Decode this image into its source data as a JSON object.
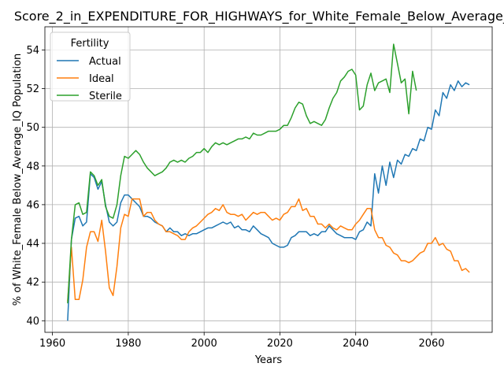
{
  "chart_data": {
    "type": "line",
    "title": "Score_2_in_EXPENDITURE_FOR_HIGHWAYS_for_White_Female_Below_Average_IQ",
    "xlabel": "Years",
    "ylabel": "% of White_Female Below_Average_IQ Population",
    "xlim": [
      1958,
      2076
    ],
    "ylim": [
      39.4,
      55.2
    ],
    "xticks": [
      1960,
      1980,
      2000,
      2020,
      2040,
      2060
    ],
    "yticks": [
      40,
      42,
      44,
      46,
      48,
      50,
      52,
      54
    ],
    "grid": true,
    "legend": {
      "title": "Fertility",
      "placement": "top-left"
    },
    "series": [
      {
        "name": "Actual",
        "color": "#1f77b4",
        "x": [
          1964,
          1965,
          1966,
          1967,
          1968,
          1969,
          1970,
          1971,
          1972,
          1973,
          1974,
          1975,
          1976,
          1977,
          1978,
          1979,
          1980,
          1981,
          1982,
          1983,
          1984,
          1985,
          1986,
          1987,
          1988,
          1989,
          1990,
          1991,
          1992,
          1993,
          1994,
          1995,
          1996,
          1997,
          1998,
          1999,
          2000,
          2001,
          2002,
          2003,
          2004,
          2005,
          2006,
          2007,
          2008,
          2009,
          2010,
          2011,
          2012,
          2013,
          2014,
          2015,
          2016,
          2017,
          2018,
          2019,
          2020,
          2021,
          2022,
          2023,
          2024,
          2025,
          2026,
          2027,
          2028,
          2029,
          2030,
          2031,
          2032,
          2033,
          2034,
          2035,
          2036,
          2037,
          2038,
          2039,
          2040,
          2041,
          2042,
          2043,
          2044,
          2045,
          2046,
          2047,
          2048,
          2049,
          2050,
          2051,
          2052,
          2053,
          2054,
          2055,
          2056,
          2057,
          2058,
          2059,
          2060,
          2061,
          2062,
          2063,
          2064,
          2065,
          2066,
          2067,
          2068,
          2069,
          2070
        ],
        "y": [
          40.0,
          44.2,
          45.3,
          45.4,
          44.9,
          45.1,
          47.6,
          47.4,
          46.8,
          47.2,
          46.0,
          45.1,
          44.9,
          45.1,
          46.1,
          46.5,
          46.5,
          46.3,
          46.1,
          45.9,
          45.4,
          45.4,
          45.3,
          45.1,
          45.0,
          44.9,
          44.6,
          44.8,
          44.6,
          44.6,
          44.4,
          44.5,
          44.4,
          44.5,
          44.5,
          44.6,
          44.7,
          44.8,
          44.8,
          44.9,
          45.0,
          45.1,
          45.0,
          45.1,
          44.8,
          44.9,
          44.7,
          44.7,
          44.6,
          44.9,
          44.7,
          44.5,
          44.4,
          44.3,
          44.0,
          43.9,
          43.8,
          43.8,
          43.9,
          44.3,
          44.4,
          44.6,
          44.6,
          44.6,
          44.4,
          44.5,
          44.4,
          44.6,
          44.6,
          44.9,
          44.7,
          44.5,
          44.4,
          44.3,
          44.3,
          44.3,
          44.2,
          44.6,
          44.7,
          45.1,
          44.9,
          47.6,
          46.6,
          48.0,
          47.0,
          48.2,
          47.4,
          48.3,
          48.1,
          48.6,
          48.5,
          48.9,
          48.8,
          49.4,
          49.3,
          50.0,
          49.9,
          50.9,
          50.6,
          51.8,
          51.5,
          52.2,
          51.9,
          52.4,
          52.1,
          52.3,
          52.2
        ]
      },
      {
        "name": "Ideal",
        "color": "#ff7f0e",
        "x": [
          1964,
          1965,
          1966,
          1967,
          1968,
          1969,
          1970,
          1971,
          1972,
          1973,
          1974,
          1975,
          1976,
          1977,
          1978,
          1979,
          1980,
          1981,
          1982,
          1983,
          1984,
          1985,
          1986,
          1987,
          1988,
          1989,
          1990,
          1991,
          1992,
          1993,
          1994,
          1995,
          1996,
          1997,
          1998,
          1999,
          2000,
          2001,
          2002,
          2003,
          2004,
          2005,
          2006,
          2007,
          2008,
          2009,
          2010,
          2011,
          2012,
          2013,
          2014,
          2015,
          2016,
          2017,
          2018,
          2019,
          2020,
          2021,
          2022,
          2023,
          2024,
          2025,
          2026,
          2027,
          2028,
          2029,
          2030,
          2031,
          2032,
          2033,
          2034,
          2035,
          2036,
          2037,
          2038,
          2039,
          2040,
          2041,
          2042,
          2043,
          2044,
          2045,
          2046,
          2047,
          2048,
          2049,
          2050,
          2051,
          2052,
          2053,
          2054,
          2055,
          2056,
          2057,
          2058,
          2059,
          2060,
          2061,
          2062,
          2063,
          2064,
          2065,
          2066,
          2067,
          2068,
          2069,
          2070
        ],
        "y": [
          41.0,
          43.8,
          41.1,
          41.1,
          42.1,
          43.8,
          44.6,
          44.6,
          44.1,
          45.2,
          43.6,
          41.7,
          41.3,
          42.8,
          44.8,
          45.5,
          45.4,
          46.3,
          46.3,
          46.3,
          45.4,
          45.6,
          45.6,
          45.2,
          45.0,
          44.9,
          44.6,
          44.6,
          44.5,
          44.4,
          44.2,
          44.2,
          44.6,
          44.8,
          44.9,
          45.1,
          45.3,
          45.5,
          45.6,
          45.8,
          45.7,
          46.0,
          45.6,
          45.5,
          45.5,
          45.4,
          45.5,
          45.2,
          45.4,
          45.6,
          45.5,
          45.6,
          45.6,
          45.4,
          45.2,
          45.3,
          45.2,
          45.5,
          45.6,
          45.9,
          45.9,
          46.3,
          45.7,
          45.8,
          45.4,
          45.4,
          45.0,
          45.0,
          44.8,
          45.0,
          44.8,
          44.7,
          44.9,
          44.8,
          44.7,
          44.7,
          45.0,
          45.2,
          45.5,
          45.8,
          45.8,
          44.7,
          44.3,
          44.3,
          43.9,
          43.8,
          43.5,
          43.4,
          43.1,
          43.1,
          43.0,
          43.1,
          43.3,
          43.5,
          43.6,
          44.0,
          44.0,
          44.3,
          43.9,
          44.0,
          43.7,
          43.6,
          43.1,
          43.1,
          42.6,
          42.7,
          42.5
        ]
      },
      {
        "name": "Sterile",
        "color": "#2ca02c",
        "x": [
          1964,
          1965,
          1966,
          1967,
          1968,
          1969,
          1970,
          1971,
          1972,
          1973,
          1974,
          1975,
          1976,
          1977,
          1978,
          1979,
          1980,
          1981,
          1982,
          1983,
          1984,
          1985,
          1986,
          1987,
          1988,
          1989,
          1990,
          1991,
          1992,
          1993,
          1994,
          1995,
          1996,
          1997,
          1998,
          1999,
          2000,
          2001,
          2002,
          2003,
          2004,
          2005,
          2006,
          2007,
          2008,
          2009,
          2010,
          2011,
          2012,
          2013,
          2014,
          2015,
          2016,
          2017,
          2018,
          2019,
          2020,
          2021,
          2022,
          2023,
          2024,
          2025,
          2026,
          2027,
          2028,
          2029,
          2030,
          2031,
          2032,
          2033,
          2034,
          2035,
          2036,
          2037,
          2038,
          2039,
          2040,
          2041,
          2042,
          2043,
          2044,
          2045,
          2046,
          2047,
          2048,
          2049,
          2050,
          2051,
          2052,
          2053,
          2054,
          2055,
          2056
        ],
        "y": [
          40.9,
          44.2,
          46.0,
          46.1,
          45.5,
          45.6,
          47.7,
          47.5,
          47.0,
          47.3,
          45.9,
          45.4,
          45.3,
          46.0,
          47.5,
          48.5,
          48.4,
          48.6,
          48.8,
          48.6,
          48.2,
          47.9,
          47.7,
          47.5,
          47.6,
          47.7,
          47.9,
          48.2,
          48.3,
          48.2,
          48.3,
          48.2,
          48.4,
          48.5,
          48.7,
          48.7,
          48.9,
          48.7,
          49.0,
          49.2,
          49.1,
          49.2,
          49.1,
          49.2,
          49.3,
          49.4,
          49.4,
          49.5,
          49.4,
          49.7,
          49.6,
          49.6,
          49.7,
          49.8,
          49.8,
          49.8,
          49.9,
          50.1,
          50.1,
          50.5,
          51.0,
          51.3,
          51.2,
          50.6,
          50.2,
          50.3,
          50.2,
          50.1,
          50.4,
          51.0,
          51.5,
          51.8,
          52.4,
          52.6,
          52.9,
          53.0,
          52.7,
          50.9,
          51.1,
          52.2,
          52.8,
          51.9,
          52.3,
          52.4,
          52.5,
          51.8,
          54.3,
          53.3,
          52.3,
          52.5,
          50.7,
          52.9,
          51.9
        ]
      }
    ]
  }
}
